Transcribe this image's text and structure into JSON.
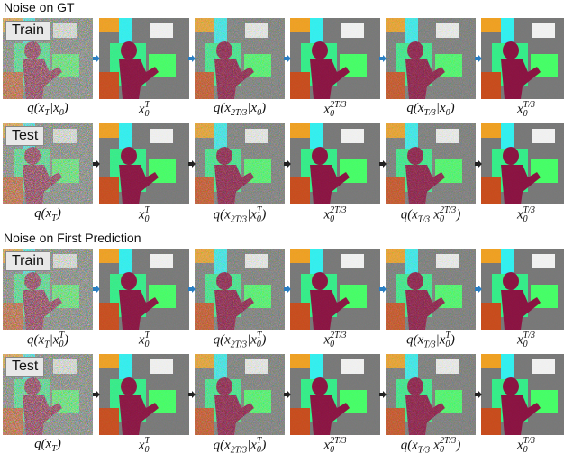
{
  "sections": [
    {
      "title": "Noise on GT",
      "rows": [
        {
          "tag": "Train",
          "arrow_color": "#2a7fc4",
          "labels": [
            [
              "q(x",
              {
                "sub": "T"
              },
              "|x",
              {
                "sub": "0"
              },
              ")"
            ],
            [
              "x",
              {
                "sub": "0",
                "sup": "T"
              }
            ],
            [
              "q(x",
              {
                "sub": "2T/3"
              },
              "|x",
              {
                "sub": "0"
              },
              ")"
            ],
            [
              "x",
              {
                "sub": "0",
                "sup": "2T/3"
              }
            ],
            [
              "q(x",
              {
                "sub": "T/3"
              },
              "|x",
              {
                "sub": "0"
              },
              ")"
            ],
            [
              "x",
              {
                "sub": "0",
                "sup": "T/3"
              }
            ]
          ]
        },
        {
          "tag": "Test",
          "arrow_color": "#222222",
          "labels": [
            [
              "q(x",
              {
                "sub": "T"
              },
              ")"
            ],
            [
              "x",
              {
                "sub": "0",
                "sup": "T"
              }
            ],
            [
              "q(x",
              {
                "sub": "2T/3"
              },
              "|x",
              {
                "sub": "0",
                "sup": "T"
              },
              ")"
            ],
            [
              "x",
              {
                "sub": "0",
                "sup": "2T/3"
              }
            ],
            [
              "q(x",
              {
                "sub": "T/3"
              },
              "|x",
              {
                "sub": "0",
                "sup": "2T/3"
              },
              ")"
            ],
            [
              "x",
              {
                "sub": "0",
                "sup": "T/3"
              }
            ]
          ]
        }
      ]
    },
    {
      "title": "Noise on First Prediction",
      "rows": [
        {
          "tag": "Train",
          "arrow_color": "#2a7fc4",
          "labels": [
            [
              "q(x",
              {
                "sub": "T"
              },
              "|x",
              {
                "sub": "0",
                "sup": "T"
              },
              ")"
            ],
            [
              "x",
              {
                "sub": "0",
                "sup": "T"
              }
            ],
            [
              "q(x",
              {
                "sub": "2T/3"
              },
              "|x",
              {
                "sub": "0",
                "sup": "T"
              },
              ")"
            ],
            [
              "x",
              {
                "sub": "0",
                "sup": "2T/3"
              }
            ],
            [
              "q(x",
              {
                "sub": "T/3"
              },
              "|x",
              {
                "sub": "0",
                "sup": "T"
              },
              ")"
            ],
            [
              "x",
              {
                "sub": "0",
                "sup": "T/3"
              }
            ]
          ]
        },
        {
          "tag": "Test",
          "arrow_color": "#222222",
          "labels": [
            [
              "q(x",
              {
                "sub": "T"
              },
              ")"
            ],
            [
              "x",
              {
                "sub": "0",
                "sup": "T"
              }
            ],
            [
              "q(x",
              {
                "sub": "2T/3"
              },
              "|x",
              {
                "sub": "0",
                "sup": "T"
              },
              ")"
            ],
            [
              "x",
              {
                "sub": "0",
                "sup": "2T/3"
              }
            ],
            [
              "q(x",
              {
                "sub": "T/3"
              },
              "|x",
              {
                "sub": "0",
                "sup": "2T/3"
              },
              ")"
            ],
            [
              "x",
              {
                "sub": "0",
                "sup": "T/3"
              }
            ]
          ]
        }
      ]
    }
  ]
}
